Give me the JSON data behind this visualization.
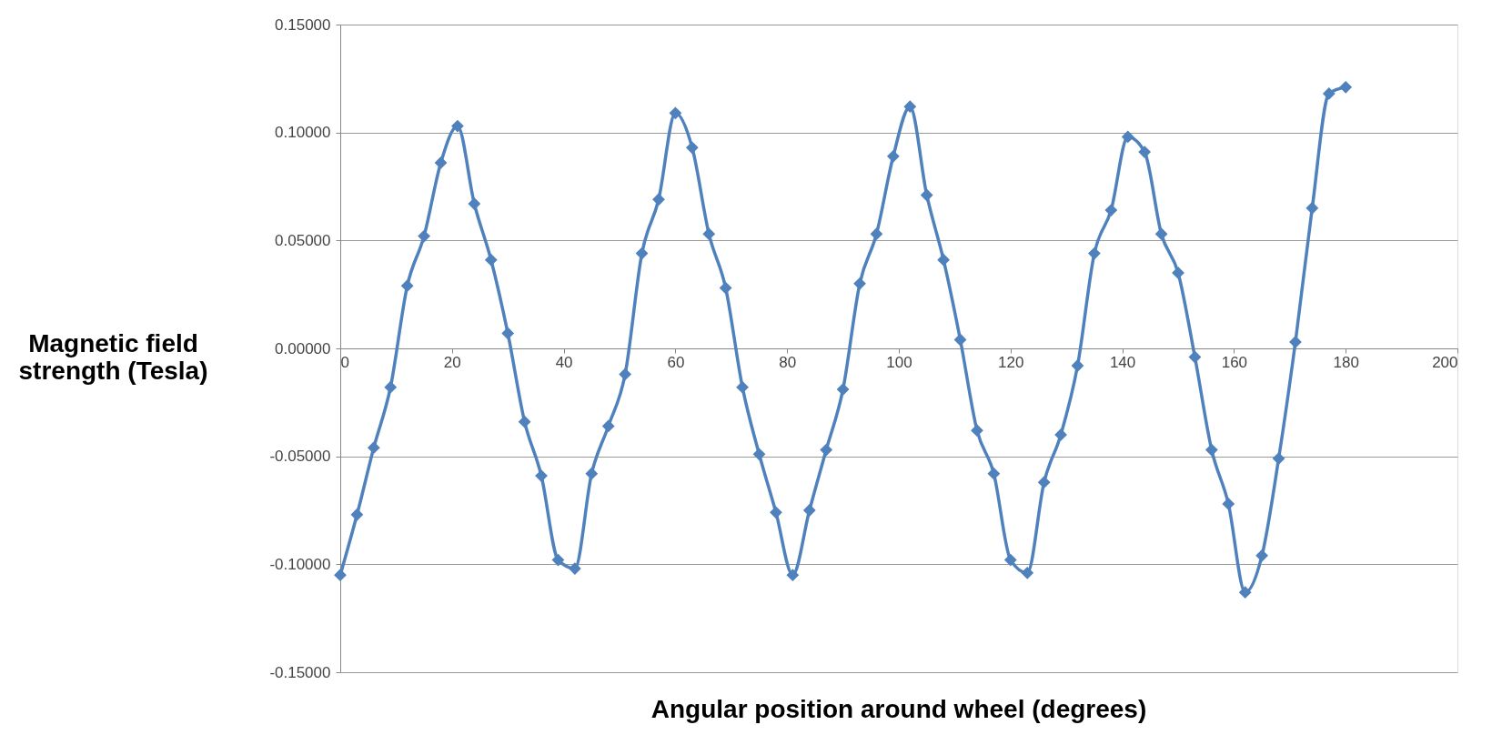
{
  "chart_data": {
    "type": "line",
    "xlabel": "Angular position around wheel (degrees)",
    "ylabel": "Magnetic field strength (Tesla)",
    "x": [
      0,
      3,
      6,
      9,
      12,
      15,
      18,
      21,
      24,
      27,
      30,
      33,
      36,
      39,
      42,
      45,
      48,
      51,
      54,
      57,
      60,
      63,
      66,
      69,
      72,
      75,
      78,
      81,
      84,
      87,
      90,
      93,
      96,
      99,
      102,
      105,
      108,
      111,
      114,
      117,
      120,
      123,
      126,
      129,
      132,
      135,
      138,
      141,
      144,
      147,
      150,
      153,
      156,
      159,
      162,
      165,
      168,
      171,
      174,
      177,
      180
    ],
    "series": [
      {
        "color": "#4f81bd",
        "values": [
          -0.105,
          -0.077,
          -0.046,
          -0.018,
          0.029,
          0.052,
          0.086,
          0.103,
          0.067,
          0.041,
          0.007,
          -0.034,
          -0.059,
          -0.098,
          -0.102,
          -0.058,
          -0.036,
          -0.012,
          0.044,
          0.069,
          0.109,
          0.093,
          0.053,
          0.028,
          -0.018,
          -0.049,
          -0.076,
          -0.105,
          -0.075,
          -0.047,
          -0.019,
          0.03,
          0.053,
          0.089,
          0.112,
          0.071,
          0.041,
          0.004,
          -0.038,
          -0.058,
          -0.098,
          -0.104,
          -0.062,
          -0.04,
          -0.008,
          0.044,
          0.064,
          0.098,
          0.091,
          0.053,
          0.035,
          -0.004,
          -0.047,
          -0.072,
          -0.113,
          -0.096,
          -0.051,
          0.003,
          0.065,
          0.118,
          0.121
        ]
      }
    ],
    "xlim": [
      0,
      200
    ],
    "xticks": [
      0,
      20,
      40,
      60,
      80,
      100,
      120,
      140,
      160,
      180,
      200
    ],
    "ylim": [
      -0.15,
      0.15
    ],
    "yticks": [
      {
        "value": -0.15,
        "label": "-0.15000"
      },
      {
        "value": -0.1,
        "label": "-0.10000"
      },
      {
        "value": -0.05,
        "label": "-0.05000"
      },
      {
        "value": 0,
        "label": "0.00000"
      },
      {
        "value": 0.05,
        "label": "0.05000"
      },
      {
        "value": 0.1,
        "label": "0.10000"
      },
      {
        "value": 0.15,
        "label": "0.15000"
      }
    ],
    "grid": "y",
    "marker": "diamond",
    "line_style": "solid"
  }
}
